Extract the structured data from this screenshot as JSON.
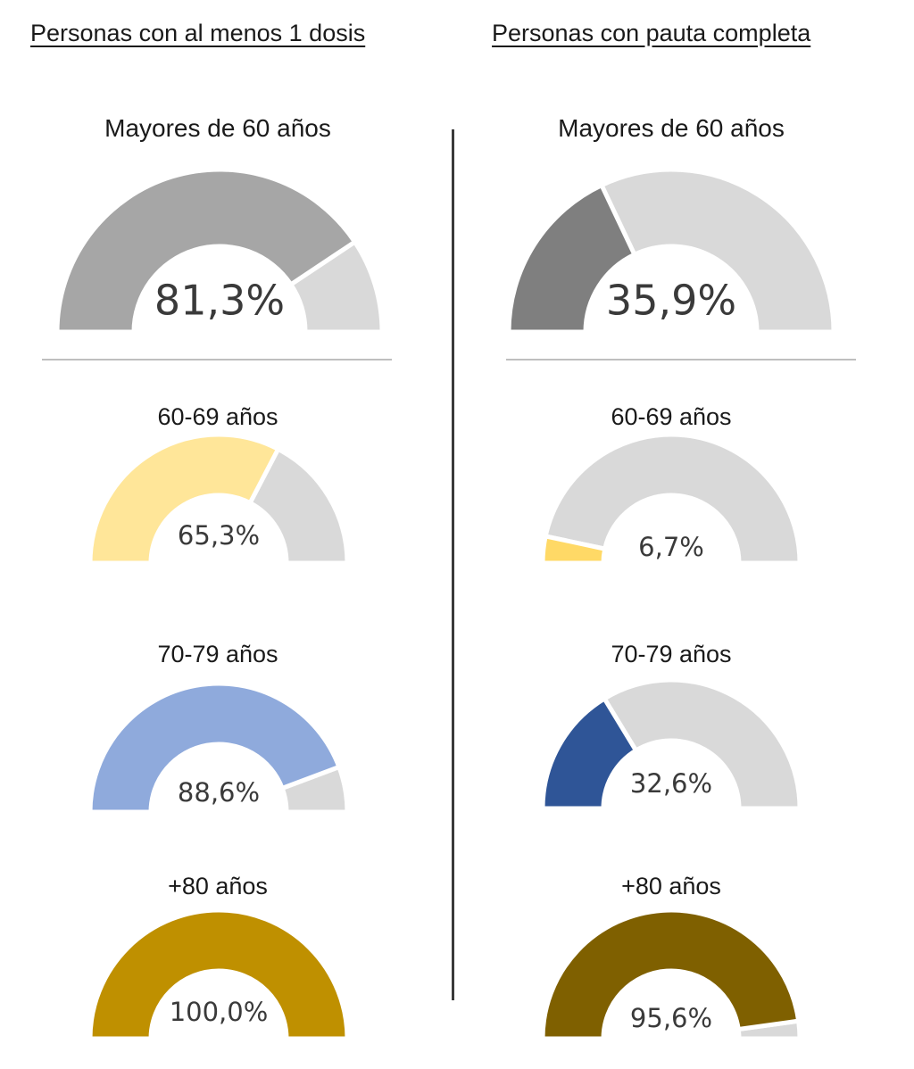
{
  "headings": {
    "left": "Personas con al menos 1 dosis",
    "right": "Personas con pauta completa"
  },
  "chart_data": [
    {
      "type": "gauge",
      "group": "Personas con al menos 1 dosis",
      "title": "Mayores de 60 años",
      "value": 81.3,
      "label": "81,3%",
      "max": 100,
      "fill_color": "#a6a6a6",
      "rest_color": "#d9d9d9"
    },
    {
      "type": "gauge",
      "group": "Personas con al menos 1 dosis",
      "title": "60-69 años",
      "value": 65.3,
      "label": "65,3%",
      "max": 100,
      "fill_color": "#ffe699",
      "rest_color": "#d9d9d9"
    },
    {
      "type": "gauge",
      "group": "Personas con al menos 1 dosis",
      "title": "70-79 años",
      "value": 88.6,
      "label": "88,6%",
      "max": 100,
      "fill_color": "#8faadc",
      "rest_color": "#d9d9d9"
    },
    {
      "type": "gauge",
      "group": "Personas con al menos 1 dosis",
      "title": "+80 años",
      "value": 100.0,
      "label": "100,0%",
      "max": 100,
      "fill_color": "#bf9000",
      "rest_color": "#d9d9d9"
    },
    {
      "type": "gauge",
      "group": "Personas con pauta completa",
      "title": "Mayores de 60 años",
      "value": 35.9,
      "label": "35,9%",
      "max": 100,
      "fill_color": "#7f7f7f",
      "rest_color": "#d9d9d9"
    },
    {
      "type": "gauge",
      "group": "Personas con pauta completa",
      "title": "60-69 años",
      "value": 6.7,
      "label": "6,7%",
      "max": 100,
      "fill_color": "#ffd966",
      "rest_color": "#d9d9d9"
    },
    {
      "type": "gauge",
      "group": "Personas con pauta completa",
      "title": "70-79 años",
      "value": 32.6,
      "label": "32,6%",
      "max": 100,
      "fill_color": "#2f5597",
      "rest_color": "#d9d9d9"
    },
    {
      "type": "gauge",
      "group": "Personas con pauta completa",
      "title": "+80 años",
      "value": 95.6,
      "label": "95,6%",
      "max": 100,
      "fill_color": "#7f6000",
      "rest_color": "#d9d9d9"
    }
  ]
}
